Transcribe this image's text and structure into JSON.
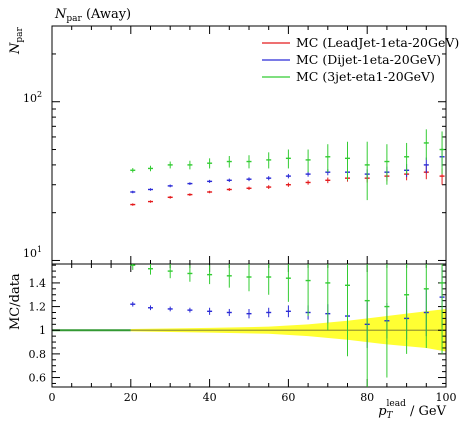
{
  "chart_data": [
    {
      "type": "scatter",
      "title_main": "N",
      "title_sub": "par",
      "title_suffix": " (Away)",
      "ylabel_main": "N",
      "ylabel_sub": "par",
      "yscale": "log",
      "xlim": [
        0,
        100
      ],
      "ylim": [
        9.5,
        300
      ],
      "ytick_labels": [
        {
          "value": 10,
          "base": "10",
          "exp": "1"
        },
        {
          "value": 100,
          "base": "10",
          "exp": "2"
        }
      ],
      "legend_position": "top-right",
      "series": [
        {
          "name": "MC (LeadJet-1eta-20GeV)",
          "color": "#e41a1c",
          "x": [
            20.5,
            25,
            30,
            35,
            40,
            45,
            50,
            55,
            60,
            65,
            70,
            75,
            80,
            85,
            90,
            95,
            99
          ],
          "y": [
            22.5,
            23.5,
            25,
            26,
            27,
            28,
            28.5,
            29,
            30,
            31,
            32,
            33,
            33,
            34,
            35,
            36,
            34
          ],
          "yerr": [
            0.4,
            0.4,
            0.5,
            0.5,
            0.5,
            0.6,
            0.7,
            0.8,
            0.9,
            1.0,
            1.3,
            1.6,
            2.0,
            2.5,
            3.0,
            3.5,
            4.0
          ]
        },
        {
          "name": "MC (Dijet-1eta-20GeV)",
          "color": "#2b2bd6",
          "x": [
            20.5,
            25,
            30,
            35,
            40,
            45,
            50,
            55,
            60,
            65,
            70,
            75,
            80,
            85,
            90,
            95,
            99
          ],
          "y": [
            27,
            28,
            29.5,
            30.5,
            31.5,
            32,
            32.5,
            33,
            34,
            35,
            36,
            36,
            35,
            36,
            37,
            40,
            45
          ],
          "yerr": [
            0.5,
            0.5,
            0.6,
            0.6,
            0.7,
            0.8,
            0.9,
            1.0,
            1.1,
            1.3,
            1.6,
            2.0,
            2.5,
            3.0,
            3.5,
            4.5,
            6.0
          ]
        },
        {
          "name": "MC (3jet-eta1-20GeV)",
          "color": "#33cc33",
          "x": [
            20.5,
            25,
            30,
            35,
            40,
            45,
            50,
            55,
            60,
            65,
            70,
            75,
            80,
            85,
            90,
            95,
            99
          ],
          "y": [
            37,
            38,
            40,
            40,
            41,
            42,
            42,
            43,
            44,
            43,
            45,
            44,
            40,
            42,
            45,
            55,
            50
          ],
          "yerr": [
            1.2,
            1.5,
            2.0,
            2.5,
            3.0,
            3.5,
            4.0,
            5.0,
            6.0,
            7.0,
            9.0,
            12.0,
            16.0,
            12.0,
            10.0,
            12.0,
            15.0
          ]
        }
      ]
    },
    {
      "type": "scatter",
      "ylabel": "MC/data",
      "xlabel_main": "p",
      "xlabel_sub": "T",
      "xlabel_sup": "lead",
      "xlabel_suffix": " / GeV",
      "xlim": [
        0,
        100
      ],
      "ylim": [
        0.52,
        1.56
      ],
      "xticks": [
        0,
        20,
        40,
        60,
        80,
        100
      ],
      "yticks": [
        0.6,
        0.8,
        1,
        1.2,
        1.4
      ],
      "ytick_labels": [
        "0.6",
        "0.8",
        "1",
        "1.2",
        "1.4"
      ],
      "reference_line": 1,
      "data_band": {
        "color": "#ffff33",
        "x": [
          20,
          40,
          55,
          65,
          75,
          85,
          95,
          100
        ],
        "lower": [
          0.99,
          0.98,
          0.97,
          0.95,
          0.92,
          0.88,
          0.85,
          0.82
        ],
        "upper": [
          1.01,
          1.02,
          1.03,
          1.05,
          1.08,
          1.12,
          1.16,
          1.18
        ]
      },
      "series": [
        {
          "color": "#2b2bd6",
          "x": [
            20.5,
            25,
            30,
            35,
            40,
            45,
            50,
            55,
            60,
            65,
            70,
            75,
            80,
            85,
            90,
            95,
            99
          ],
          "y": [
            1.22,
            1.19,
            1.18,
            1.17,
            1.16,
            1.15,
            1.14,
            1.15,
            1.16,
            1.15,
            1.14,
            1.12,
            1.05,
            1.08,
            1.1,
            1.15,
            1.28
          ],
          "yerr": [
            0.02,
            0.02,
            0.02,
            0.02,
            0.03,
            0.03,
            0.04,
            0.04,
            0.05,
            0.06,
            0.08,
            0.12,
            0.2,
            0.15,
            0.18,
            0.2,
            0.25
          ]
        },
        {
          "color": "#33cc33",
          "x": [
            20.5,
            25,
            30,
            35,
            40,
            45,
            50,
            55,
            60,
            65,
            70,
            75,
            80,
            85,
            90,
            95,
            99
          ],
          "y": [
            1.55,
            1.52,
            1.5,
            1.48,
            1.47,
            1.46,
            1.45,
            1.45,
            1.44,
            1.42,
            1.4,
            1.38,
            1.25,
            1.2,
            1.3,
            1.35,
            1.4
          ],
          "yerr": [
            0.04,
            0.05,
            0.06,
            0.07,
            0.08,
            0.1,
            0.12,
            0.15,
            0.2,
            0.3,
            0.4,
            0.6,
            0.8,
            0.6,
            0.5,
            0.5,
            0.6
          ]
        }
      ]
    }
  ]
}
